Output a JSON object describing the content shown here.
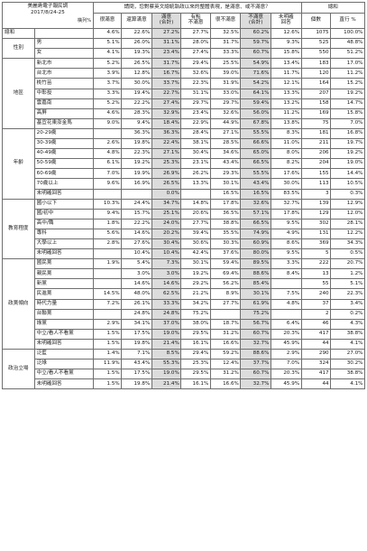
{
  "header": {
    "title": "美麗島電子報民調",
    "date": "2017/8/24-25",
    "row_label": "橫列%",
    "question": "請問，您對蔡英文總統執政以來的整體表現，是滿意、或不滿意？",
    "total_label": "總和"
  },
  "columns": [
    {
      "label": "很滿意",
      "shaded": false
    },
    {
      "label": "還算滿意",
      "shaded": false
    },
    {
      "label": "滿意\n(合計)",
      "shaded": true
    },
    {
      "label": "有點\n不滿意",
      "shaded": false
    },
    {
      "label": "很不滿意",
      "shaded": false
    },
    {
      "label": "不滿意\n(合計)",
      "shaded": true
    },
    {
      "label": "未明確\n回答",
      "shaded": false
    },
    {
      "label": "個數",
      "shaded": false
    },
    {
      "label": "直行 %",
      "shaded": false
    }
  ],
  "rows": [
    {
      "cat": "總和",
      "sub": "",
      "v": [
        "4.6%",
        "22.6%",
        "27.2%",
        "27.7%",
        "32.5%",
        "60.2%",
        "12.6%",
        "1075",
        "100.0%"
      ]
    },
    {
      "cat": "性別",
      "sub": "男",
      "v": [
        "5.1%",
        "26.0%",
        "31.1%",
        "28.0%",
        "31.7%",
        "59.7%",
        "9.3%",
        "525",
        "48.8%"
      ]
    },
    {
      "cat": "",
      "sub": "女",
      "v": [
        "4.1%",
        "19.3%",
        "23.4%",
        "27.4%",
        "33.3%",
        "60.7%",
        "15.8%",
        "550",
        "51.2%"
      ]
    },
    {
      "cat": "地區",
      "sub": "新北市",
      "v": [
        "5.2%",
        "26.5%",
        "31.7%",
        "29.4%",
        "25.5%",
        "54.9%",
        "13.4%",
        "183",
        "17.0%"
      ]
    },
    {
      "cat": "",
      "sub": "台北市",
      "v": [
        "3.9%",
        "12.8%",
        "16.7%",
        "32.6%",
        "39.0%",
        "71.6%",
        "11.7%",
        "120",
        "11.2%"
      ]
    },
    {
      "cat": "",
      "sub": "桃竹苗",
      "v": [
        "3.7%",
        "30.0%",
        "33.7%",
        "22.3%",
        "31.9%",
        "54.2%",
        "12.1%",
        "164",
        "15.2%"
      ]
    },
    {
      "cat": "",
      "sub": "中彰投",
      "v": [
        "3.3%",
        "19.4%",
        "22.7%",
        "31.1%",
        "33.0%",
        "64.1%",
        "13.3%",
        "207",
        "19.2%"
      ]
    },
    {
      "cat": "",
      "sub": "雲嘉南",
      "v": [
        "5.2%",
        "22.2%",
        "27.4%",
        "29.7%",
        "29.7%",
        "59.4%",
        "13.2%",
        "158",
        "14.7%"
      ]
    },
    {
      "cat": "",
      "sub": "高屏",
      "v": [
        "4.6%",
        "28.3%",
        "32.9%",
        "23.4%",
        "32.6%",
        "56.0%",
        "11.2%",
        "169",
        "15.8%"
      ]
    },
    {
      "cat": "",
      "sub": "基宜花東澎金馬",
      "v": [
        "9.0%",
        "9.4%",
        "18.4%",
        "22.9%",
        "44.9%",
        "67.8%",
        "13.8%",
        "75",
        "7.0%"
      ]
    },
    {
      "cat": "年齡",
      "sub": "20-29歲",
      "v": [
        "",
        "36.3%",
        "36.3%",
        "28.4%",
        "27.1%",
        "55.5%",
        "8.3%",
        "181",
        "16.8%"
      ]
    },
    {
      "cat": "",
      "sub": "30-39歲",
      "v": [
        "2.6%",
        "19.8%",
        "22.4%",
        "38.1%",
        "28.5%",
        "66.6%",
        "11.0%",
        "211",
        "19.7%"
      ]
    },
    {
      "cat": "",
      "sub": "40-49歲",
      "v": [
        "4.8%",
        "22.3%",
        "27.1%",
        "30.4%",
        "34.6%",
        "65.0%",
        "8.0%",
        "206",
        "19.2%"
      ]
    },
    {
      "cat": "",
      "sub": "50-59歲",
      "v": [
        "6.1%",
        "19.2%",
        "25.3%",
        "23.1%",
        "43.4%",
        "66.5%",
        "8.2%",
        "204",
        "19.0%"
      ]
    },
    {
      "cat": "",
      "sub": "60-69歲",
      "v": [
        "7.0%",
        "19.9%",
        "26.9%",
        "26.2%",
        "29.3%",
        "55.5%",
        "17.6%",
        "155",
        "14.4%"
      ]
    },
    {
      "cat": "",
      "sub": "70歲以上",
      "v": [
        "9.6%",
        "16.9%",
        "26.5%",
        "13.3%",
        "30.1%",
        "43.4%",
        "30.0%",
        "113",
        "10.5%"
      ]
    },
    {
      "cat": "",
      "sub": "未明確回答",
      "v": [
        "",
        "",
        "0.0%",
        "",
        "16.5%",
        "16.5%",
        "83.5%",
        "3",
        "0.3%"
      ]
    },
    {
      "cat": "教育程度",
      "sub": "國小以下",
      "v": [
        "10.3%",
        "24.4%",
        "34.7%",
        "14.8%",
        "17.8%",
        "32.6%",
        "32.7%",
        "139",
        "12.9%"
      ]
    },
    {
      "cat": "",
      "sub": "國/初中",
      "v": [
        "9.4%",
        "15.7%",
        "25.1%",
        "20.6%",
        "36.5%",
        "57.1%",
        "17.8%",
        "129",
        "12.0%"
      ]
    },
    {
      "cat": "",
      "sub": "高中/職",
      "v": [
        "1.8%",
        "22.2%",
        "24.0%",
        "27.7%",
        "38.8%",
        "66.5%",
        "9.5%",
        "302",
        "28.1%"
      ]
    },
    {
      "cat": "",
      "sub": "專科",
      "v": [
        "5.6%",
        "14.6%",
        "20.2%",
        "39.4%",
        "35.5%",
        "74.9%",
        "4.9%",
        "131",
        "12.2%"
      ]
    },
    {
      "cat": "",
      "sub": "大學以上",
      "v": [
        "2.8%",
        "27.6%",
        "30.4%",
        "30.6%",
        "30.3%",
        "60.9%",
        "8.6%",
        "369",
        "34.3%"
      ]
    },
    {
      "cat": "",
      "sub": "未明確回答",
      "v": [
        "",
        "10.4%",
        "10.4%",
        "42.4%",
        "37.6%",
        "80.0%",
        "9.5%",
        "5",
        "0.5%"
      ]
    },
    {
      "cat": "政黨傾向",
      "sub": "國民黨",
      "v": [
        "1.9%",
        "5.4%",
        "7.3%",
        "30.1%",
        "59.4%",
        "89.5%",
        "3.3%",
        "222",
        "20.7%"
      ]
    },
    {
      "cat": "",
      "sub": "親民黨",
      "v": [
        "",
        "3.0%",
        "3.0%",
        "19.2%",
        "69.4%",
        "88.6%",
        "8.4%",
        "13",
        "1.2%"
      ]
    },
    {
      "cat": "",
      "sub": "新黨",
      "v": [
        "",
        "14.6%",
        "14.6%",
        "29.2%",
        "56.2%",
        "85.4%",
        "",
        "55",
        "5.1%"
      ]
    },
    {
      "cat": "",
      "sub": "民進黨",
      "v": [
        "14.5%",
        "48.0%",
        "62.5%",
        "21.2%",
        "8.9%",
        "30.1%",
        "7.5%",
        "240",
        "22.3%"
      ]
    },
    {
      "cat": "",
      "sub": "時代力量",
      "v": [
        "7.2%",
        "26.1%",
        "33.3%",
        "34.2%",
        "27.7%",
        "61.9%",
        "4.8%",
        "37",
        "3.4%"
      ]
    },
    {
      "cat": "",
      "sub": "台聯黨",
      "v": [
        "",
        "24.8%",
        "24.8%",
        "75.2%",
        "",
        "75.2%",
        "",
        "2",
        "0.2%"
      ]
    },
    {
      "cat": "",
      "sub": "綠黨",
      "v": [
        "2.9%",
        "34.1%",
        "37.0%",
        "38.0%",
        "18.7%",
        "56.7%",
        "6.4%",
        "46",
        "4.3%"
      ]
    },
    {
      "cat": "",
      "sub": "中立/看人不看黨",
      "v": [
        "1.5%",
        "17.5%",
        "19.0%",
        "29.5%",
        "31.2%",
        "60.7%",
        "20.3%",
        "417",
        "38.8%"
      ]
    },
    {
      "cat": "",
      "sub": "未明確回答",
      "v": [
        "1.5%",
        "19.8%",
        "21.4%",
        "16.1%",
        "16.6%",
        "32.7%",
        "45.9%",
        "44",
        "4.1%"
      ]
    },
    {
      "cat": "政治立場",
      "sub": "泛藍",
      "v": [
        "1.4%",
        "7.1%",
        "8.5%",
        "29.4%",
        "59.2%",
        "88.6%",
        "2.9%",
        "290",
        "27.0%"
      ]
    },
    {
      "cat": "",
      "sub": "泛綠",
      "v": [
        "11.9%",
        "43.4%",
        "55.3%",
        "25.3%",
        "12.4%",
        "37.7%",
        "7.0%",
        "324",
        "30.2%"
      ]
    },
    {
      "cat": "",
      "sub": "中立/看人不看黨",
      "v": [
        "1.5%",
        "17.5%",
        "19.0%",
        "29.5%",
        "31.2%",
        "60.7%",
        "20.3%",
        "417",
        "38.8%"
      ]
    },
    {
      "cat": "",
      "sub": "未明確回答",
      "v": [
        "1.5%",
        "19.8%",
        "21.4%",
        "16.1%",
        "16.6%",
        "32.7%",
        "45.9%",
        "44",
        "4.1%"
      ]
    }
  ],
  "categories": [
    {
      "name": "總和",
      "span": 1,
      "dataname": "category-total"
    },
    {
      "name": "性別",
      "span": 2,
      "dataname": "category-gender"
    },
    {
      "name": "地區",
      "span": 7,
      "dataname": "category-region"
    },
    {
      "name": "年齡",
      "span": 7,
      "dataname": "category-age"
    },
    {
      "name": "教育程度",
      "span": 6,
      "dataname": "category-education"
    },
    {
      "name": "政黨傾向",
      "span": 9,
      "dataname": "category-party"
    },
    {
      "name": "政治立場",
      "span": 4,
      "dataname": "category-stance"
    }
  ]
}
